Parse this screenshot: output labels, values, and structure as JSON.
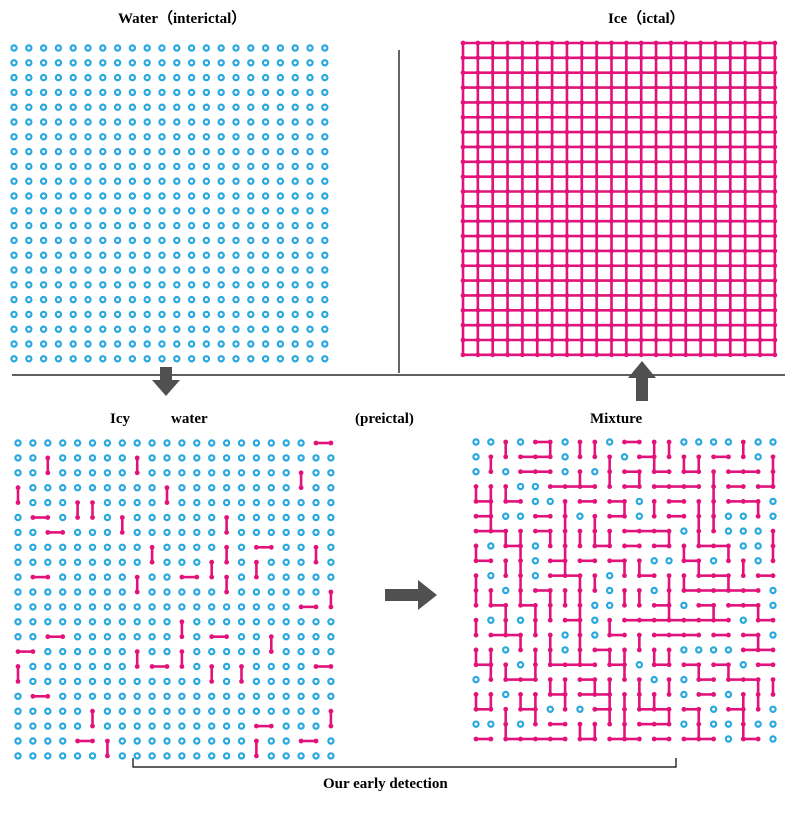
{
  "labels": {
    "water": "Water（interictal）",
    "ice": "Ice（ictal）",
    "icy": "Icy",
    "water2": "water",
    "preictal": "(preictal)",
    "mixture": "Mixture",
    "detection": "Our early detection"
  },
  "colors": {
    "water": "#29a8df",
    "ice": "#e2127a",
    "arrow": "#505050",
    "line": "#000000"
  }
}
